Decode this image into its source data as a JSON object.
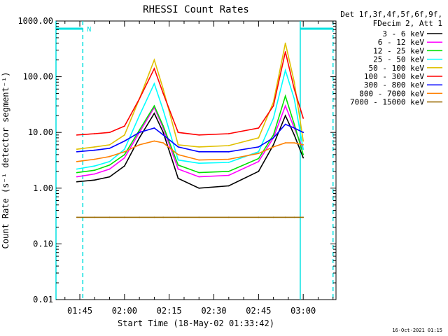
{
  "chart_data": {
    "type": "line",
    "title": "RHESSI Count Rates",
    "xlabel": "Start Time (18-May-02 01:33:42)",
    "ylabel": "Count Rate (s⁻¹ detector segment⁻¹)",
    "y_scale": "log",
    "ylim": [
      0.01,
      1000
    ],
    "y_ticks": [
      "1000.00",
      "100.00",
      "10.00",
      "1.00",
      "0.10",
      "0.01"
    ],
    "x_range_minutes": [
      "01:37",
      "03:11"
    ],
    "x_ticks": [
      "01:45",
      "02:00",
      "02:15",
      "02:30",
      "02:45",
      "03:00"
    ],
    "grid": false,
    "legend_position": "right",
    "legend_header": [
      "Det 1f,3f,4f,5f,6f,9f,",
      "FDecim 2, Att 1"
    ],
    "series": [
      {
        "name": "3 - 6 keV",
        "color": "#000000",
        "x": [
          "01:44",
          "01:50",
          "01:55",
          "02:00",
          "02:05",
          "02:10",
          "02:13",
          "02:18",
          "02:25",
          "02:35",
          "02:45",
          "02:50",
          "02:54",
          "02:57",
          "03:00"
        ],
        "y": [
          1.3,
          1.4,
          1.6,
          2.5,
          8,
          22,
          10,
          1.5,
          1.0,
          1.1,
          2.0,
          6,
          20,
          9,
          3.5
        ]
      },
      {
        "name": "6 - 12 keV",
        "color": "#ff00ff",
        "x": [
          "01:44",
          "01:50",
          "01:55",
          "02:00",
          "02:05",
          "02:10",
          "02:13",
          "02:18",
          "02:25",
          "02:35",
          "02:45",
          "02:50",
          "02:54",
          "02:57",
          "03:00"
        ],
        "y": [
          1.6,
          1.8,
          2.2,
          3.5,
          10,
          28,
          12,
          2.2,
          1.6,
          1.7,
          3.0,
          8,
          30,
          12,
          5
        ]
      },
      {
        "name": "12 - 25 keV",
        "color": "#00e000",
        "x": [
          "01:44",
          "01:50",
          "01:55",
          "02:00",
          "02:05",
          "02:10",
          "02:13",
          "02:18",
          "02:25",
          "02:35",
          "02:45",
          "02:50",
          "02:54",
          "02:57",
          "03:00"
        ],
        "y": [
          1.9,
          2.1,
          2.6,
          4,
          11,
          30,
          13,
          2.6,
          1.9,
          2.0,
          3.4,
          9,
          45,
          14,
          4
        ]
      },
      {
        "name": "25 - 50 keV",
        "color": "#00ffff",
        "x": [
          "01:44",
          "01:50",
          "01:55",
          "02:00",
          "02:05",
          "02:10",
          "02:13",
          "02:18",
          "02:25",
          "02:35",
          "02:45",
          "02:50",
          "02:54",
          "02:57",
          "03:00"
        ],
        "y": [
          2.2,
          2.5,
          3.0,
          5,
          20,
          75,
          25,
          3.2,
          2.8,
          2.9,
          4.5,
          18,
          130,
          40,
          5
        ]
      },
      {
        "name": "50 - 100 keV",
        "color": "#e0c000",
        "x": [
          "01:44",
          "01:50",
          "01:55",
          "02:00",
          "02:05",
          "02:10",
          "02:13",
          "02:18",
          "02:25",
          "02:35",
          "02:45",
          "02:50",
          "02:54",
          "02:57",
          "03:00"
        ],
        "y": [
          5,
          5.5,
          6,
          9,
          40,
          200,
          60,
          6,
          5.5,
          5.8,
          8,
          35,
          400,
          80,
          7
        ]
      },
      {
        "name": "100 - 300 keV",
        "color": "#ff0000",
        "x": [
          "01:44",
          "01:50",
          "01:55",
          "02:00",
          "02:05",
          "02:10",
          "02:13",
          "02:18",
          "02:25",
          "02:35",
          "02:45",
          "02:50",
          "02:54",
          "02:57",
          "03:00"
        ],
        "y": [
          9,
          9.5,
          10,
          13,
          40,
          140,
          50,
          10,
          9,
          9.5,
          12,
          30,
          280,
          60,
          18
        ]
      },
      {
        "name": "300 - 800 keV",
        "color": "#0000ff",
        "x": [
          "01:44",
          "01:50",
          "01:55",
          "02:00",
          "02:05",
          "02:10",
          "02:13",
          "02:18",
          "02:25",
          "02:35",
          "02:45",
          "02:50",
          "02:54",
          "02:57",
          "03:00"
        ],
        "y": [
          4.5,
          4.8,
          5.2,
          7,
          10,
          12,
          9,
          5.5,
          4.5,
          4.5,
          5.5,
          8,
          14,
          12,
          10
        ]
      },
      {
        "name": "800 - 7000 keV",
        "color": "#ff8000",
        "x": [
          "01:44",
          "01:50",
          "01:55",
          "02:00",
          "02:05",
          "02:10",
          "02:13",
          "02:18",
          "02:25",
          "02:35",
          "02:45",
          "02:50",
          "02:54",
          "02:57",
          "03:00"
        ],
        "y": [
          3,
          3.3,
          3.7,
          4.5,
          6,
          7,
          6.5,
          4,
          3.2,
          3.3,
          4.2,
          5.5,
          6.5,
          6.5,
          6
        ]
      },
      {
        "name": "7000 - 15000 keV",
        "color": "#9a6a00",
        "x": [
          "01:44",
          "01:50",
          "01:55",
          "02:00",
          "02:05",
          "02:10",
          "02:13",
          "02:18",
          "02:25",
          "02:35",
          "02:45",
          "02:50",
          "02:54",
          "02:57",
          "03:00"
        ],
        "y": [
          0.3,
          0.3,
          0.3,
          0.3,
          0.3,
          0.3,
          0.3,
          0.3,
          0.3,
          0.3,
          0.3,
          0.3,
          0.3,
          0.3,
          0.3
        ]
      }
    ],
    "overlays": {
      "night_bars": [
        [
          "01:37",
          "01:46"
        ],
        [
          "02:59",
          "03:10"
        ]
      ],
      "night_label": "N",
      "vlines_solid": [
        "01:37",
        "02:59"
      ],
      "vlines_dashed": [
        "01:46",
        "03:10"
      ],
      "color": "#00e0e0"
    }
  },
  "timestamp": "16-Oct-2021 01:15"
}
